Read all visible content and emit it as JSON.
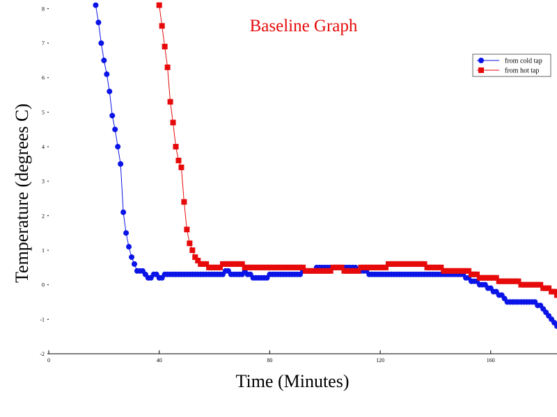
{
  "chart_data": {
    "type": "line",
    "title": "Baseline Graph",
    "x_label": "Time (Minutes)",
    "y_label": "Temperature (degrees C)",
    "xlim": [
      0,
      184
    ],
    "ylim": [
      -2,
      8.25
    ],
    "xticks": [
      0,
      40,
      80,
      120,
      160
    ],
    "yticks": [
      -2,
      -1,
      0,
      1,
      2,
      3,
      4,
      5,
      6,
      7,
      8
    ],
    "legend": "upper right",
    "x": [
      17,
      18,
      19,
      20,
      21,
      22,
      23,
      24,
      25,
      26,
      27,
      28,
      29,
      30,
      31,
      32,
      33,
      34,
      35,
      36,
      37,
      38,
      39,
      40,
      41,
      42,
      43,
      44,
      45,
      46,
      47,
      48,
      49,
      50,
      51,
      52,
      53,
      54,
      55,
      56,
      57,
      58,
      59,
      60,
      61,
      62,
      63,
      64,
      65,
      66,
      67,
      68,
      69,
      70,
      71,
      72,
      73,
      74,
      75,
      76,
      77,
      78,
      79,
      80,
      81,
      82,
      83,
      84,
      85,
      86,
      87,
      88,
      89,
      90,
      91,
      92,
      93,
      94,
      95,
      96,
      97,
      98,
      99,
      100,
      101,
      102,
      103,
      104,
      105,
      106,
      107,
      108,
      109,
      110,
      111,
      112,
      113,
      114,
      115,
      116,
      117,
      118,
      119,
      120,
      121,
      122,
      123,
      124,
      125,
      126,
      127,
      128,
      129,
      130,
      131,
      132,
      133,
      134,
      135,
      136,
      137,
      138,
      139,
      140,
      141,
      142,
      143,
      144,
      145,
      146,
      147,
      148,
      149,
      150,
      151,
      152,
      153,
      154,
      155,
      156,
      157,
      158,
      159,
      160,
      161,
      162,
      163,
      164,
      165,
      166,
      167,
      168,
      169,
      170,
      171,
      172,
      173,
      174,
      175,
      176,
      177,
      178,
      179,
      180,
      181,
      182,
      183,
      184
    ],
    "series": [
      {
        "name": "from cold tap",
        "color": "#0a14e6",
        "marker": "circle",
        "values": [
          8.1,
          7.6,
          7.0,
          6.5,
          6.1,
          5.6,
          4.9,
          4.5,
          4.0,
          3.5,
          2.1,
          1.5,
          1.1,
          0.8,
          0.6,
          0.4,
          0.4,
          0.4,
          0.3,
          0.2,
          0.2,
          0.3,
          0.3,
          0.2,
          0.2,
          0.3,
          0.3,
          0.3,
          0.3,
          0.3,
          0.3,
          0.3,
          0.3,
          0.3,
          0.3,
          0.3,
          0.3,
          0.3,
          0.3,
          0.3,
          0.3,
          0.3,
          0.3,
          0.3,
          0.3,
          0.3,
          0.3,
          0.4,
          0.4,
          0.3,
          0.3,
          0.3,
          0.3,
          0.3,
          0.4,
          0.3,
          0.3,
          0.2,
          0.2,
          0.2,
          0.2,
          0.2,
          0.2,
          0.3,
          0.3,
          0.3,
          0.3,
          0.3,
          0.3,
          0.3,
          0.3,
          0.3,
          0.3,
          0.3,
          0.3,
          0.4,
          0.4,
          0.4,
          0.4,
          0.4,
          0.5,
          0.5,
          0.5,
          0.5,
          0.5,
          0.5,
          0.5,
          0.5,
          0.5,
          0.5,
          0.5,
          0.5,
          0.5,
          0.5,
          0.5,
          0.4,
          0.4,
          0.4,
          0.4,
          0.3,
          0.3,
          0.3,
          0.3,
          0.3,
          0.3,
          0.3,
          0.3,
          0.3,
          0.3,
          0.3,
          0.3,
          0.3,
          0.3,
          0.3,
          0.3,
          0.3,
          0.3,
          0.3,
          0.3,
          0.3,
          0.3,
          0.3,
          0.3,
          0.3,
          0.3,
          0.3,
          0.3,
          0.3,
          0.3,
          0.3,
          0.3,
          0.3,
          0.3,
          0.3,
          0.2,
          0.2,
          0.1,
          0.1,
          0.1,
          0.0,
          0.0,
          0.0,
          -0.1,
          -0.1,
          -0.2,
          -0.2,
          -0.3,
          -0.3,
          -0.4,
          -0.5,
          -0.5,
          -0.5,
          -0.5,
          -0.5,
          -0.5,
          -0.5,
          -0.5,
          -0.5,
          -0.5,
          -0.5,
          -0.6,
          -0.6,
          -0.7,
          -0.8,
          -0.9,
          -1.0,
          -1.1,
          -1.2
        ]
      },
      {
        "name": "from hot tap",
        "color": "#e60a0a",
        "marker": "square",
        "values": [
          null,
          null,
          null,
          null,
          null,
          null,
          null,
          null,
          null,
          null,
          null,
          null,
          null,
          null,
          null,
          null,
          null,
          null,
          null,
          null,
          null,
          null,
          null,
          8.1,
          7.5,
          6.9,
          6.3,
          5.3,
          4.7,
          4.0,
          3.6,
          3.4,
          2.4,
          1.6,
          1.2,
          1.0,
          0.8,
          0.7,
          0.6,
          0.6,
          0.6,
          0.5,
          0.5,
          0.5,
          0.5,
          0.5,
          0.6,
          0.6,
          0.6,
          0.6,
          0.6,
          0.6,
          0.6,
          0.6,
          0.5,
          0.5,
          0.5,
          0.5,
          0.5,
          0.5,
          0.5,
          0.5,
          0.5,
          0.5,
          0.5,
          0.5,
          0.5,
          0.5,
          0.5,
          0.5,
          0.5,
          0.5,
          0.5,
          0.5,
          0.5,
          0.5,
          0.4,
          0.4,
          0.4,
          0.4,
          0.4,
          0.4,
          0.4,
          0.4,
          0.4,
          0.4,
          0.5,
          0.5,
          0.5,
          0.5,
          0.4,
          0.4,
          0.4,
          0.4,
          0.4,
          0.4,
          0.5,
          0.5,
          0.5,
          0.5,
          0.5,
          0.5,
          0.5,
          0.5,
          0.5,
          0.5,
          0.6,
          0.6,
          0.6,
          0.6,
          0.6,
          0.6,
          0.6,
          0.6,
          0.6,
          0.6,
          0.6,
          0.6,
          0.6,
          0.6,
          0.5,
          0.5,
          0.5,
          0.5,
          0.5,
          0.5,
          0.4,
          0.4,
          0.4,
          0.4,
          0.4,
          0.4,
          0.4,
          0.4,
          0.4,
          0.4,
          0.3,
          0.3,
          0.3,
          0.2,
          0.2,
          0.2,
          0.2,
          0.2,
          0.2,
          0.2,
          0.1,
          0.1,
          0.1,
          0.1,
          0.1,
          0.1,
          0.1,
          0.1,
          0.0,
          0.0,
          0.0,
          0.0,
          0.0,
          0.0,
          0.0,
          0.0,
          -0.1,
          -0.1,
          -0.1,
          -0.2,
          -0.2,
          -0.3
        ]
      }
    ]
  }
}
